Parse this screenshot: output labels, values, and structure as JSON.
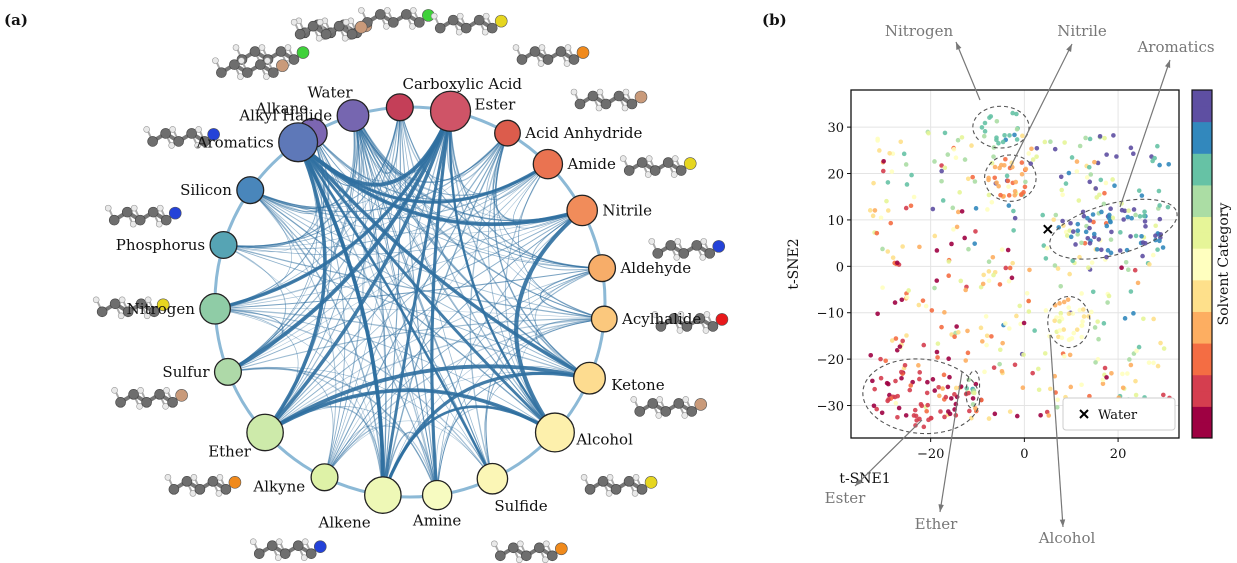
{
  "panel_a": {
    "label": "(a)",
    "chart_data": {
      "type": "network",
      "nodes": [
        {
          "name": "Alkane",
          "size": 0.55,
          "color": "#7c66b2"
        },
        {
          "name": "Water",
          "size": 0.35,
          "color": "#a3254e"
        },
        {
          "name": "Carboxylic Acid",
          "size": 0.45,
          "color": "#c43f58"
        },
        {
          "name": "Ester",
          "size": 1.0,
          "color": "#cf5467"
        },
        {
          "name": "Acid Anhydride",
          "size": 0.4,
          "color": "#dc5c4c"
        },
        {
          "name": "Amide",
          "size": 0.55,
          "color": "#ea7351"
        },
        {
          "name": "Nitrile",
          "size": 0.6,
          "color": "#f18c5a"
        },
        {
          "name": "Aldehyde",
          "size": 0.45,
          "color": "#f7ad69"
        },
        {
          "name": "Acylhalide",
          "size": 0.4,
          "color": "#fbc87d"
        },
        {
          "name": "Ketone",
          "size": 0.65,
          "color": "#fddc90"
        },
        {
          "name": "Alcohol",
          "size": 0.95,
          "color": "#fdf0ac"
        },
        {
          "name": "Sulfide",
          "size": 0.6,
          "color": "#fbf6b6"
        },
        {
          "name": "Amine",
          "size": 0.55,
          "color": "#f7fbc1"
        },
        {
          "name": "Alkene",
          "size": 0.85,
          "color": "#eef8b6"
        },
        {
          "name": "Alkyne",
          "size": 0.45,
          "color": "#def2a7"
        },
        {
          "name": "Ether",
          "size": 0.85,
          "color": "#cdeaaa"
        },
        {
          "name": "Sulfur",
          "size": 0.45,
          "color": "#aed9a8"
        },
        {
          "name": "Nitrogen",
          "size": 0.6,
          "color": "#8fcca6"
        },
        {
          "name": "Phosphorus",
          "size": 0.45,
          "color": "#56a4b4"
        },
        {
          "name": "Silicon",
          "size": 0.45,
          "color": "#4986bb"
        },
        {
          "name": "Aromatics",
          "size": 0.95,
          "color": "#5e78b8"
        },
        {
          "name": "Alkyl Halide",
          "size": 0.65,
          "color": "#7666b0"
        }
      ],
      "strong_edges": [
        [
          "Aromatics",
          "Ether"
        ],
        [
          "Aromatics",
          "Alcohol"
        ],
        [
          "Aromatics",
          "Sulfide"
        ],
        [
          "Aromatics",
          "Ketone"
        ],
        [
          "Aromatics",
          "Nitrile"
        ],
        [
          "Aromatics",
          "Alkene"
        ],
        [
          "Ester",
          "Ether"
        ],
        [
          "Ester",
          "Alcohol"
        ],
        [
          "Ester",
          "Alkene"
        ],
        [
          "Ester",
          "Amine"
        ],
        [
          "Ester",
          "Aromatics"
        ],
        [
          "Ether",
          "Ketone"
        ],
        [
          "Alcohol",
          "Ether"
        ],
        [
          "Alkene",
          "Alcohol"
        ],
        [
          "Ester",
          "Nitrogen"
        ],
        [
          "Aromatics",
          "Amide"
        ],
        [
          "Alkene",
          "Ketone"
        ],
        [
          "Ester",
          "Sulfur"
        ],
        [
          "Alcohol",
          "Nitrile"
        ],
        [
          "Alkene",
          "Aromatics"
        ]
      ]
    }
  },
  "panel_b": {
    "label": "(b)",
    "chart_data": {
      "type": "scatter",
      "xlabel": "t-SNE1",
      "ylabel": "t-SNE2",
      "xlim": [
        -37,
        33
      ],
      "ylim": [
        -37,
        38
      ],
      "xticks": [
        -20,
        0,
        20
      ],
      "yticks": [
        -30,
        -20,
        -10,
        0,
        10,
        20,
        30
      ],
      "xtick_labels": [
        "−20",
        "0",
        "20"
      ],
      "ytick_labels": [
        "−30",
        "−20",
        "−10",
        "0",
        "10",
        "20",
        "30"
      ],
      "colorbar_label": "Solvent Category",
      "legend": {
        "label": "Water",
        "marker": "x",
        "position": "lower right"
      },
      "water_point": [
        5,
        8
      ],
      "clusters": [
        {
          "name": "Nitrogen",
          "center": [
            -5,
            30
          ],
          "radius": [
            6,
            4.5
          ],
          "angle": 0,
          "label_pos": [
            -22,
            51
          ],
          "point_to": [
            -8,
            35
          ]
        },
        {
          "name": "Nitrile",
          "center": [
            -3,
            19
          ],
          "radius": [
            5.5,
            5
          ],
          "angle": 0,
          "label_pos": [
            20,
            51
          ],
          "point_to": [
            -2,
            22
          ]
        },
        {
          "name": "Aromatics",
          "center": [
            19,
            8
          ],
          "radius": [
            14,
            5.5
          ],
          "angle": 15,
          "label_pos": [
            44,
            48
          ],
          "point_to": [
            22,
            12
          ]
        },
        {
          "name": "Alcohol",
          "center": [
            9.5,
            -12
          ],
          "radius": [
            4.5,
            5.5
          ],
          "angle": 0,
          "label_pos": [
            10,
            -58
          ],
          "point_to": [
            9,
            -17
          ]
        },
        {
          "name": "Ester",
          "center": [
            -22,
            -28
          ],
          "radius": [
            12.5,
            8
          ],
          "angle": -5,
          "label_pos": [
            -42,
            -51
          ],
          "point_to": [
            -25,
            -34
          ]
        },
        {
          "name": "Ether",
          "center": [
            -11,
            -26.5
          ],
          "radius": [
            1.4,
            4
          ],
          "angle": -5,
          "label_pos": [
            -19,
            -56
          ],
          "point_to": [
            -11,
            -30
          ]
        }
      ],
      "colorscale": [
        "#9e0142",
        "#d53e4f",
        "#f46d43",
        "#fdae61",
        "#fee08b",
        "#ffffbf",
        "#e6f598",
        "#abdda4",
        "#66c2a5",
        "#3288bd",
        "#5e4fa2"
      ]
    }
  }
}
